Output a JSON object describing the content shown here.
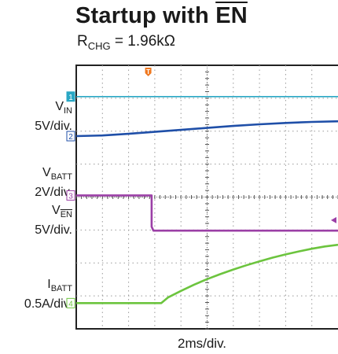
{
  "chart_data": {
    "type": "line",
    "title_prefix": "Startup with ",
    "title_signal": "EN",
    "subtitle": {
      "label": "R",
      "sub": "CHG",
      "rest": " = 1.96kΩ"
    },
    "xlabel": "2ms/div.",
    "x_unit": "div",
    "xlim": [
      0,
      10
    ],
    "ylim": [
      -4,
      4
    ],
    "grid": true,
    "trigger_marker": {
      "label": "T",
      "x": 2.75,
      "color": "#f07820"
    },
    "series": [
      {
        "id": "vin",
        "label": "V",
        "sub": "IN",
        "overline_sub": false,
        "scale": "5V/div.",
        "marker": "2",
        "color": "#1f4fa8",
        "x": [
          0,
          1,
          2,
          3,
          4,
          5,
          6,
          7,
          8,
          9,
          10
        ],
        "y": [
          1.85,
          1.87,
          1.92,
          1.98,
          2.04,
          2.1,
          2.16,
          2.21,
          2.25,
          2.28,
          2.3
        ]
      },
      {
        "id": "vbatt",
        "label": "V",
        "sub": "BATT",
        "overline_sub": false,
        "scale": "2V/div.",
        "marker": "1",
        "color": "#2aa7c4",
        "x": [
          0,
          10
        ],
        "y": [
          3.05,
          3.05
        ]
      },
      {
        "id": "ven",
        "label": "V",
        "sub": "EN",
        "overline_sub": true,
        "scale": "5V/div.",
        "marker": "3",
        "color": "#9b3fa6",
        "x": [
          0,
          2.88,
          2.88,
          2.95,
          10
        ],
        "y": [
          0.05,
          0.05,
          -0.9,
          -1.02,
          -1.02
        ]
      },
      {
        "id": "ibatt",
        "label": "I",
        "sub": "BATT",
        "overline_sub": false,
        "scale": "0.5A/div.",
        "marker": "4",
        "color": "#6cc43e",
        "x": [
          0,
          3.25,
          3.5,
          4,
          4.5,
          5,
          5.5,
          6,
          6.5,
          7,
          7.5,
          8,
          8.5,
          9,
          9.5,
          10
        ],
        "y": [
          -3.22,
          -3.22,
          -3.05,
          -2.85,
          -2.66,
          -2.49,
          -2.34,
          -2.2,
          -2.07,
          -1.95,
          -1.84,
          -1.74,
          -1.65,
          -1.57,
          -1.5,
          -1.45
        ]
      }
    ]
  }
}
